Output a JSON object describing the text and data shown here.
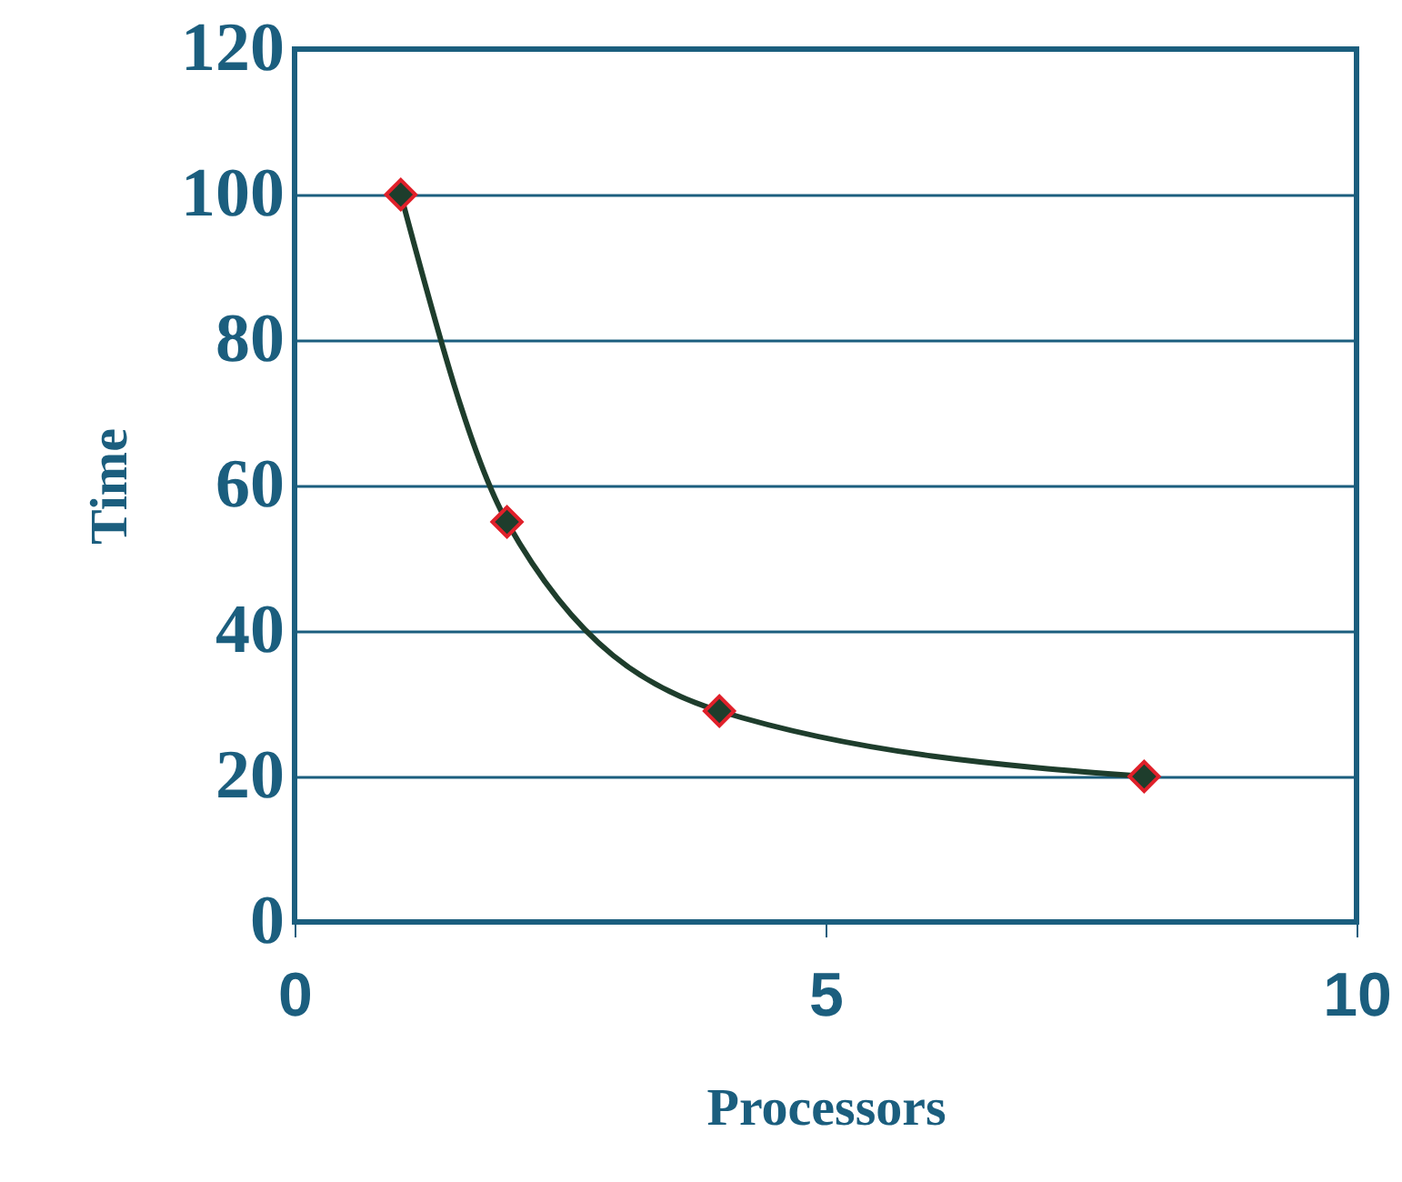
{
  "chart_data": {
    "type": "line",
    "xlabel": "Processors",
    "ylabel": "Time",
    "x": [
      1,
      2,
      4,
      8
    ],
    "series": [
      {
        "color": "#1e3d2c",
        "values": [
          100,
          55,
          29,
          20
        ]
      }
    ],
    "xlim": [
      0,
      10
    ],
    "xticks": [
      0,
      5,
      10
    ],
    "ylim": [
      0,
      120
    ],
    "yticks": [
      0,
      20,
      40,
      60,
      80,
      100,
      120
    ],
    "grid": "y",
    "marker": "diamond",
    "line_style": "solid",
    "legend": false
  }
}
